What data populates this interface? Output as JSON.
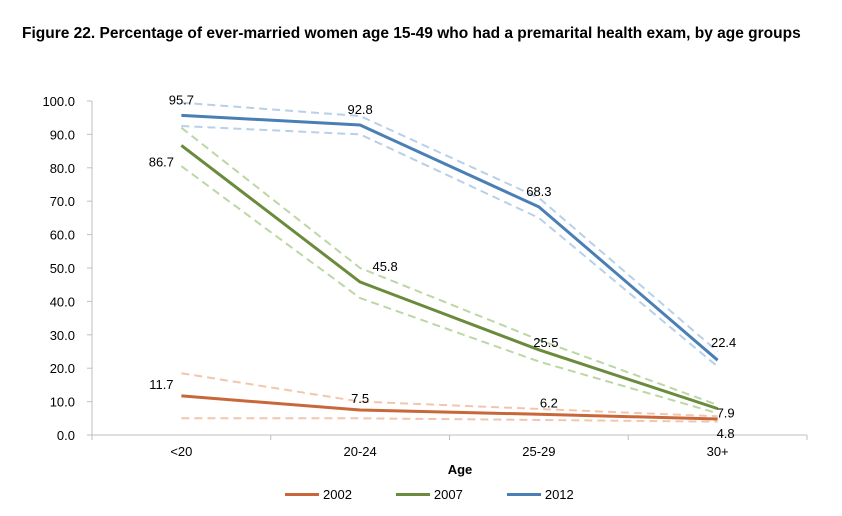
{
  "title": "Figure 22. Percentage of ever-married women age 15-49 who had a premarital health exam, by age groups",
  "chart_data": {
    "type": "line",
    "xlabel": "Age",
    "ylabel": "",
    "categories": [
      "<20",
      "20-24",
      "25-29",
      "30+"
    ],
    "ylim": [
      0,
      100
    ],
    "yticks": [
      "0.0",
      "10.0",
      "20.0",
      "30.0",
      "40.0",
      "50.0",
      "60.0",
      "70.0",
      "80.0",
      "90.0",
      "100.0"
    ],
    "grid": false,
    "legend_position": "bottom",
    "series": [
      {
        "name": "2002",
        "color": "#c8683a",
        "band_color": "#f2c6ad",
        "values": [
          11.7,
          7.5,
          6.2,
          4.8
        ],
        "upper": [
          18.5,
          10.0,
          7.8,
          5.6
        ],
        "lower": [
          5.0,
          5.0,
          4.5,
          4.0
        ],
        "labels": [
          "11.7",
          "7.5",
          "6.2",
          "4.8"
        ]
      },
      {
        "name": "2007",
        "color": "#6a8a3c",
        "band_color": "#bcd7a5",
        "values": [
          86.7,
          45.8,
          25.5,
          7.9
        ],
        "upper": [
          92.0,
          50.0,
          28.5,
          9.0
        ],
        "lower": [
          80.5,
          41.0,
          22.0,
          6.5
        ],
        "labels": [
          "86.7",
          "45.8",
          "25.5",
          "7.9"
        ]
      },
      {
        "name": "2012",
        "color": "#4a7fb5",
        "band_color": "#b8d0e8",
        "values": [
          95.7,
          92.8,
          68.3,
          22.4
        ],
        "upper": [
          99.5,
          95.5,
          71.0,
          25.0
        ],
        "lower": [
          92.5,
          90.0,
          65.0,
          20.5
        ],
        "labels": [
          "95.7",
          "92.8",
          "68.3",
          "22.4"
        ]
      }
    ]
  }
}
